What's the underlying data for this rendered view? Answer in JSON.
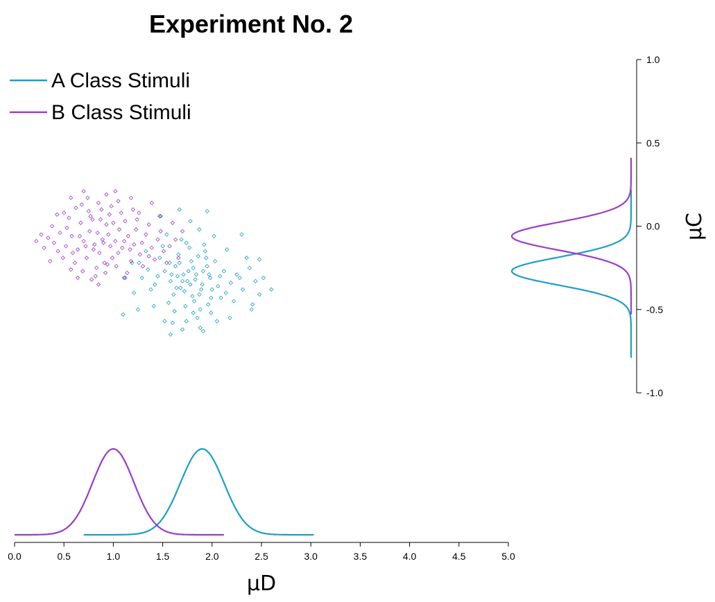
{
  "chart_data": {
    "type": "scatter",
    "title": "Experiment No. 2",
    "xlabel": "μD",
    "ylabel": "μC",
    "xlim": [
      0.0,
      5.0
    ],
    "ylim": [
      -1.0,
      1.0
    ],
    "x_ticks": [
      "0.0",
      "0.5",
      "1.0",
      "1.5",
      "2.0",
      "2.5",
      "3.0",
      "3.5",
      "4.0",
      "4.5",
      "5.0"
    ],
    "y_ticks": [
      "1.0",
      "0.5",
      "0.0",
      "-0.5",
      "-1.0"
    ],
    "legend_position": "top-left",
    "grid": false,
    "colors": {
      "A": "#1a9ec4",
      "B": "#9a3bc8"
    },
    "series": [
      {
        "name": "A Class Stimuli",
        "key": "A",
        "points": [
          [
            1.84,
            -0.29
          ],
          [
            1.75,
            -0.33
          ],
          [
            1.91,
            -0.27
          ],
          [
            1.68,
            -0.37
          ],
          [
            1.98,
            -0.31
          ],
          [
            1.79,
            -0.21
          ],
          [
            1.63,
            -0.24
          ],
          [
            2.06,
            -0.36
          ],
          [
            1.87,
            -0.41
          ],
          [
            1.71,
            -0.29
          ],
          [
            1.94,
            -0.19
          ],
          [
            1.58,
            -0.33
          ],
          [
            2.12,
            -0.27
          ],
          [
            1.82,
            -0.45
          ],
          [
            1.66,
            -0.17
          ],
          [
            1.99,
            -0.43
          ],
          [
            1.77,
            -0.13
          ],
          [
            1.52,
            -0.27
          ],
          [
            2.19,
            -0.34
          ],
          [
            1.88,
            -0.5
          ],
          [
            1.61,
            -0.41
          ],
          [
            2.03,
            -0.21
          ],
          [
            1.73,
            -0.48
          ],
          [
            1.47,
            -0.19
          ],
          [
            2.25,
            -0.29
          ],
          [
            1.92,
            -0.11
          ],
          [
            1.56,
            -0.46
          ],
          [
            2.09,
            -0.43
          ],
          [
            1.69,
            -0.08
          ],
          [
            1.42,
            -0.35
          ],
          [
            2.31,
            -0.38
          ],
          [
            1.85,
            -0.55
          ],
          [
            1.5,
            -0.12
          ],
          [
            2.15,
            -0.14
          ],
          [
            1.78,
            -0.35
          ],
          [
            1.35,
            -0.26
          ],
          [
            2.38,
            -0.25
          ],
          [
            1.96,
            -0.47
          ],
          [
            1.62,
            -0.51
          ],
          [
            2.22,
            -0.45
          ],
          [
            1.81,
            -0.25
          ],
          [
            1.29,
            -0.31
          ],
          [
            2.44,
            -0.33
          ],
          [
            1.74,
            -0.57
          ],
          [
            1.54,
            -0.05
          ],
          [
            2.02,
            -0.06
          ],
          [
            1.89,
            -0.38
          ],
          [
            1.65,
            -0.3
          ],
          [
            1.95,
            -0.24
          ],
          [
            1.72,
            -0.39
          ],
          [
            1.83,
            -0.32
          ],
          [
            1.76,
            -0.27
          ],
          [
            1.9,
            -0.35
          ],
          [
            1.67,
            -0.22
          ],
          [
            1.97,
            -0.29
          ],
          [
            1.8,
            -0.42
          ],
          [
            1.86,
            -0.18
          ],
          [
            1.7,
            -0.33
          ],
          [
            2.0,
            -0.38
          ],
          [
            1.59,
            -0.29
          ],
          [
            2.08,
            -0.3
          ],
          [
            1.64,
            -0.37
          ],
          [
            1.93,
            -0.15
          ],
          [
            1.57,
            -0.22
          ],
          [
            2.14,
            -0.4
          ],
          [
            1.81,
            -0.52
          ],
          [
            1.45,
            -0.3
          ],
          [
            2.28,
            -0.31
          ],
          [
            1.74,
            -0.1
          ],
          [
            1.99,
            -0.52
          ],
          [
            1.38,
            -0.38
          ],
          [
            2.35,
            -0.19
          ],
          [
            1.87,
            -0.02
          ],
          [
            1.26,
            -0.22
          ],
          [
            2.48,
            -0.41
          ],
          [
            1.6,
            -0.58
          ],
          [
            2.05,
            -0.57
          ],
          [
            1.33,
            -0.15
          ],
          [
            2.41,
            -0.47
          ],
          [
            1.21,
            -0.4
          ],
          [
            1.19,
            -0.22
          ],
          [
            2.52,
            -0.31
          ],
          [
            1.7,
            -0.62
          ],
          [
            1.95,
            0.09
          ],
          [
            1.78,
            0.03
          ],
          [
            1.52,
            -0.57
          ],
          [
            2.3,
            -0.05
          ],
          [
            1.1,
            -0.53
          ],
          [
            1.88,
            -0.61
          ],
          [
            1.48,
            0.06
          ],
          [
            2.48,
            -0.2
          ],
          [
            1.25,
            -0.5
          ],
          [
            2.4,
            -0.5
          ],
          [
            1.67,
            0.1
          ],
          [
            1.41,
            -0.48
          ],
          [
            2.18,
            -0.55
          ],
          [
            1.91,
            -0.63
          ],
          [
            2.6,
            -0.38
          ],
          [
            1.12,
            -0.31
          ],
          [
            1.58,
            -0.65
          ]
        ]
      },
      {
        "name": "B Class Stimuli",
        "key": "B",
        "points": [
          [
            0.89,
            -0.08
          ],
          [
            0.95,
            -0.05
          ],
          [
            0.81,
            -0.11
          ],
          [
            1.02,
            -0.09
          ],
          [
            0.76,
            -0.03
          ],
          [
            1.09,
            -0.13
          ],
          [
            0.86,
            -0.16
          ],
          [
            0.93,
            0.01
          ],
          [
            0.7,
            -0.09
          ],
          [
            1.15,
            -0.06
          ],
          [
            0.99,
            -0.19
          ],
          [
            0.79,
            0.04
          ],
          [
            1.06,
            -0.02
          ],
          [
            0.64,
            -0.14
          ],
          [
            0.91,
            -0.22
          ],
          [
            1.21,
            -0.11
          ],
          [
            0.73,
            -0.19
          ],
          [
            1.12,
            0.03
          ],
          [
            0.58,
            -0.06
          ],
          [
            0.96,
            0.07
          ],
          [
            1.27,
            -0.17
          ],
          [
            0.83,
            -0.25
          ],
          [
            1.03,
            -0.24
          ],
          [
            0.67,
            0.02
          ],
          [
            1.18,
            -0.21
          ],
          [
            0.52,
            -0.12
          ],
          [
            0.88,
            0.1
          ],
          [
            1.33,
            -0.05
          ],
          [
            0.61,
            -0.22
          ],
          [
            1.08,
            0.08
          ],
          [
            0.46,
            -0.04
          ],
          [
            1.39,
            -0.13
          ],
          [
            0.75,
            0.09
          ],
          [
            1.24,
            0.04
          ],
          [
            0.92,
            -0.28
          ],
          [
            0.4,
            -0.1
          ],
          [
            1.45,
            -0.08
          ],
          [
            0.69,
            -0.27
          ],
          [
            1.14,
            -0.28
          ],
          [
            0.55,
            0.05
          ],
          [
            1.3,
            -0.24
          ],
          [
            0.85,
            0.14
          ],
          [
            1.51,
            -0.15
          ],
          [
            0.34,
            -0.07
          ],
          [
            0.98,
            0.12
          ],
          [
            0.62,
            0.11
          ],
          [
            1.2,
            0.1
          ],
          [
            0.49,
            -0.19
          ],
          [
            1.36,
            0.01
          ],
          [
            0.78,
            -0.32
          ],
          [
            0.9,
            -0.1
          ],
          [
            0.97,
            -0.12
          ],
          [
            0.84,
            -0.04
          ],
          [
            1.05,
            -0.16
          ],
          [
            0.8,
            -0.14
          ],
          [
            1.11,
            -0.09
          ],
          [
            0.87,
            0.04
          ],
          [
            0.72,
            -0.12
          ],
          [
            1.0,
            0.02
          ],
          [
            0.66,
            -0.06
          ],
          [
            1.17,
            -0.14
          ],
          [
            0.94,
            -0.23
          ],
          [
            0.59,
            -0.16
          ],
          [
            1.23,
            -0.02
          ],
          [
            0.77,
            0.06
          ],
          [
            1.29,
            -0.1
          ],
          [
            0.53,
            -0.01
          ],
          [
            1.42,
            -0.2
          ],
          [
            0.68,
            0.13
          ],
          [
            1.05,
            0.15
          ],
          [
            0.44,
            -0.15
          ],
          [
            1.48,
            -0.03
          ],
          [
            0.82,
            -0.3
          ],
          [
            1.36,
            -0.18
          ],
          [
            0.57,
            -0.26
          ],
          [
            1.57,
            -0.12
          ],
          [
            0.38,
            0.0
          ],
          [
            1.26,
            0.08
          ],
          [
            0.74,
            0.17
          ],
          [
            1.11,
            -0.31
          ],
          [
            0.3,
            -0.13
          ],
          [
            1.63,
            -0.08
          ],
          [
            0.93,
            0.19
          ],
          [
            0.5,
            0.08
          ],
          [
            1.54,
            -0.22
          ],
          [
            0.27,
            -0.05
          ],
          [
            1.18,
            0.17
          ],
          [
            0.64,
            -0.31
          ],
          [
            1.7,
            -0.03
          ],
          [
            0.36,
            -0.21
          ],
          [
            0.85,
            -0.35
          ],
          [
            1.47,
            0.06
          ],
          [
            0.22,
            -0.09
          ],
          [
            1.02,
            0.21
          ],
          [
            1.66,
            -0.19
          ],
          [
            0.43,
            0.07
          ],
          [
            0.57,
            0.17
          ],
          [
            1.39,
            0.14
          ],
          [
            0.7,
            0.21
          ],
          [
            1.6,
            0.02
          ]
        ]
      }
    ],
    "marginal_x": [
      {
        "name": "A Class Stimuli",
        "key": "A",
        "mean": 1.9,
        "sd": 0.22,
        "range": [
          0.7,
          3.03
        ]
      },
      {
        "name": "B Class Stimuli",
        "key": "B",
        "mean": 1.0,
        "sd": 0.21,
        "range": [
          0.0,
          2.12
        ]
      }
    ],
    "marginal_y": [
      {
        "name": "A Class Stimuli",
        "key": "A",
        "mean": -0.27,
        "sd": 0.084,
        "range": [
          -0.79,
          0.22
        ]
      },
      {
        "name": "B Class Stimuli",
        "key": "B",
        "mean": -0.06,
        "sd": 0.084,
        "range": [
          -0.53,
          0.41
        ]
      }
    ]
  }
}
